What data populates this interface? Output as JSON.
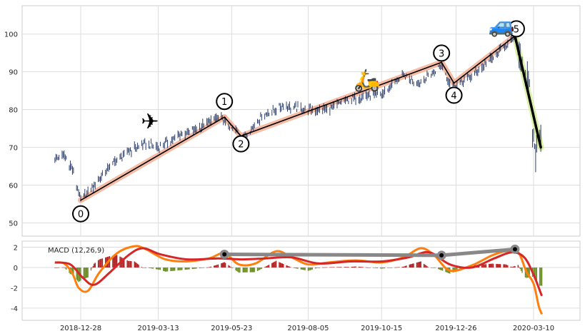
{
  "chart_data": [
    {
      "type": "candlestick",
      "panel": "price",
      "ylim": [
        46.5,
        107.5
      ],
      "yticks": [
        50,
        60,
        70,
        80,
        90,
        100
      ],
      "grid": true,
      "x_dates": [
        "2018-12-28",
        "2019-03-13",
        "2019-05-23",
        "2019-08-05",
        "2019-10-15",
        "2019-12-26",
        "2020-03-10"
      ],
      "price_path": [
        {
          "date": "2018-12-03",
          "value": 67
        },
        {
          "date": "2018-12-12",
          "value": 68
        },
        {
          "date": "2018-12-20",
          "value": 64
        },
        {
          "date": "2018-12-28",
          "value": 56
        },
        {
          "date": "2019-01-10",
          "value": 60
        },
        {
          "date": "2019-01-25",
          "value": 65
        },
        {
          "date": "2019-02-12",
          "value": 69
        },
        {
          "date": "2019-03-01",
          "value": 71
        },
        {
          "date": "2019-03-13",
          "value": 70
        },
        {
          "date": "2019-04-01",
          "value": 73
        },
        {
          "date": "2019-04-20",
          "value": 75
        },
        {
          "date": "2019-05-10",
          "value": 78
        },
        {
          "date": "2019-05-23",
          "value": 75
        },
        {
          "date": "2019-06-05",
          "value": 73
        },
        {
          "date": "2019-06-20",
          "value": 78
        },
        {
          "date": "2019-07-10",
          "value": 81
        },
        {
          "date": "2019-08-05",
          "value": 80
        },
        {
          "date": "2019-08-25",
          "value": 80
        },
        {
          "date": "2019-09-15",
          "value": 83
        },
        {
          "date": "2019-10-15",
          "value": 84
        },
        {
          "date": "2019-11-05",
          "value": 89
        },
        {
          "date": "2019-11-20",
          "value": 87
        },
        {
          "date": "2019-12-05",
          "value": 90
        },
        {
          "date": "2019-12-12",
          "value": 92
        },
        {
          "date": "2019-12-20",
          "value": 87
        },
        {
          "date": "2019-12-26",
          "value": 86
        },
        {
          "date": "2020-01-15",
          "value": 90
        },
        {
          "date": "2020-02-05",
          "value": 95
        },
        {
          "date": "2020-02-20",
          "value": 99
        },
        {
          "date": "2020-03-01",
          "value": 90
        },
        {
          "date": "2020-03-06",
          "value": 85
        },
        {
          "date": "2020-03-10",
          "value": 72
        },
        {
          "date": "2020-03-13",
          "value": 68
        },
        {
          "date": "2020-03-17",
          "value": 74
        }
      ],
      "waves": [
        {
          "label": "0",
          "date": "2018-12-28",
          "value": 56
        },
        {
          "label": "1",
          "date": "2019-05-16",
          "value": 78
        },
        {
          "label": "2",
          "date": "2019-06-01",
          "value": 73
        },
        {
          "label": "3",
          "date": "2019-12-12",
          "value": 92.5
        },
        {
          "label": "4",
          "date": "2019-12-24",
          "value": 87
        },
        {
          "label": "5",
          "date": "2020-02-21",
          "value": 99.5
        },
        {
          "label": "",
          "date": "2020-03-17",
          "value": 70
        }
      ],
      "markers": [
        {
          "icon": "airplane-icon",
          "glyph": "✈",
          "date": "2019-03-05",
          "value": 77
        },
        {
          "icon": "scooter-icon",
          "glyph": "🛵",
          "date": "2019-10-01",
          "value": 88
        },
        {
          "icon": "car-icon",
          "glyph": "🚙",
          "date": "2020-02-08",
          "value": 102.5
        }
      ],
      "colors": {
        "candle": "#2c3e6a",
        "wave_line": "#000000",
        "wave_band": "#f4b49b",
        "final_band": "#d6f0a0"
      }
    },
    {
      "type": "line",
      "panel": "macd",
      "label": "MACD (12,26,9)",
      "ylim": [
        -5.2,
        2.6
      ],
      "yticks": [
        -4,
        -2,
        0,
        2
      ],
      "grid": true,
      "series": [
        {
          "role": "macd",
          "color": "#ff7f0e",
          "points": [
            {
              "date": "2018-12-03",
              "value": 0.5
            },
            {
              "date": "2018-12-12",
              "value": 0.4
            },
            {
              "date": "2018-12-20",
              "value": -0.6
            },
            {
              "date": "2018-12-26",
              "value": -2.0
            },
            {
              "date": "2019-01-04",
              "value": -2.3
            },
            {
              "date": "2019-01-15",
              "value": -0.5
            },
            {
              "date": "2019-02-01",
              "value": 1.4
            },
            {
              "date": "2019-02-18",
              "value": 2.1
            },
            {
              "date": "2019-03-01",
              "value": 1.8
            },
            {
              "date": "2019-03-20",
              "value": 0.8
            },
            {
              "date": "2019-04-10",
              "value": 0.6
            },
            {
              "date": "2019-05-01",
              "value": 0.9
            },
            {
              "date": "2019-05-16",
              "value": 1.4
            },
            {
              "date": "2019-05-30",
              "value": 0.3
            },
            {
              "date": "2019-06-15",
              "value": 0.4
            },
            {
              "date": "2019-07-05",
              "value": 1.6
            },
            {
              "date": "2019-07-20",
              "value": 1.0
            },
            {
              "date": "2019-08-05",
              "value": 0.3
            },
            {
              "date": "2019-08-25",
              "value": 0.5
            },
            {
              "date": "2019-09-20",
              "value": 0.7
            },
            {
              "date": "2019-10-15",
              "value": 0.5
            },
            {
              "date": "2019-11-05",
              "value": 1.0
            },
            {
              "date": "2019-11-22",
              "value": 1.9
            },
            {
              "date": "2019-12-05",
              "value": 1.2
            },
            {
              "date": "2019-12-20",
              "value": -0.3
            },
            {
              "date": "2020-01-10",
              "value": 0.2
            },
            {
              "date": "2020-01-30",
              "value": 1.2
            },
            {
              "date": "2020-02-12",
              "value": 1.6
            },
            {
              "date": "2020-02-24",
              "value": 1.5
            },
            {
              "date": "2020-03-03",
              "value": -0.4
            },
            {
              "date": "2020-03-10",
              "value": -1.6
            },
            {
              "date": "2020-03-15",
              "value": -3.8
            },
            {
              "date": "2020-03-18",
              "value": -4.6
            }
          ]
        },
        {
          "role": "signal",
          "color": "#d62728",
          "points": [
            {
              "date": "2018-12-03",
              "value": 0.5
            },
            {
              "date": "2018-12-18",
              "value": 0.3
            },
            {
              "date": "2018-12-30",
              "value": -1.0
            },
            {
              "date": "2019-01-10",
              "value": -1.7
            },
            {
              "date": "2019-01-25",
              "value": -0.5
            },
            {
              "date": "2019-02-12",
              "value": 1.2
            },
            {
              "date": "2019-02-26",
              "value": 1.9
            },
            {
              "date": "2019-03-15",
              "value": 1.3
            },
            {
              "date": "2019-04-10",
              "value": 0.8
            },
            {
              "date": "2019-05-10",
              "value": 0.9
            },
            {
              "date": "2019-06-01",
              "value": 0.8
            },
            {
              "date": "2019-06-25",
              "value": 0.9
            },
            {
              "date": "2019-07-20",
              "value": 1.0
            },
            {
              "date": "2019-08-15",
              "value": 0.4
            },
            {
              "date": "2019-09-15",
              "value": 0.6
            },
            {
              "date": "2019-10-15",
              "value": 0.6
            },
            {
              "date": "2019-11-10",
              "value": 1.0
            },
            {
              "date": "2019-11-30",
              "value": 1.5
            },
            {
              "date": "2019-12-20",
              "value": 0.3
            },
            {
              "date": "2020-01-10",
              "value": 0.0
            },
            {
              "date": "2020-02-01",
              "value": 0.9
            },
            {
              "date": "2020-02-18",
              "value": 1.5
            },
            {
              "date": "2020-03-01",
              "value": 1.0
            },
            {
              "date": "2020-03-10",
              "value": -0.7
            },
            {
              "date": "2020-03-18",
              "value": -2.8
            }
          ]
        },
        {
          "role": "wave-trend",
          "color": "#888888",
          "points": [
            {
              "date": "2019-05-16",
              "value": 1.3
            },
            {
              "date": "2019-12-12",
              "value": 1.2
            },
            {
              "date": "2020-02-21",
              "value": 1.8
            }
          ]
        }
      ],
      "histogram_colors": {
        "positive": "#b22222",
        "negative": "#6b8e23"
      }
    }
  ]
}
